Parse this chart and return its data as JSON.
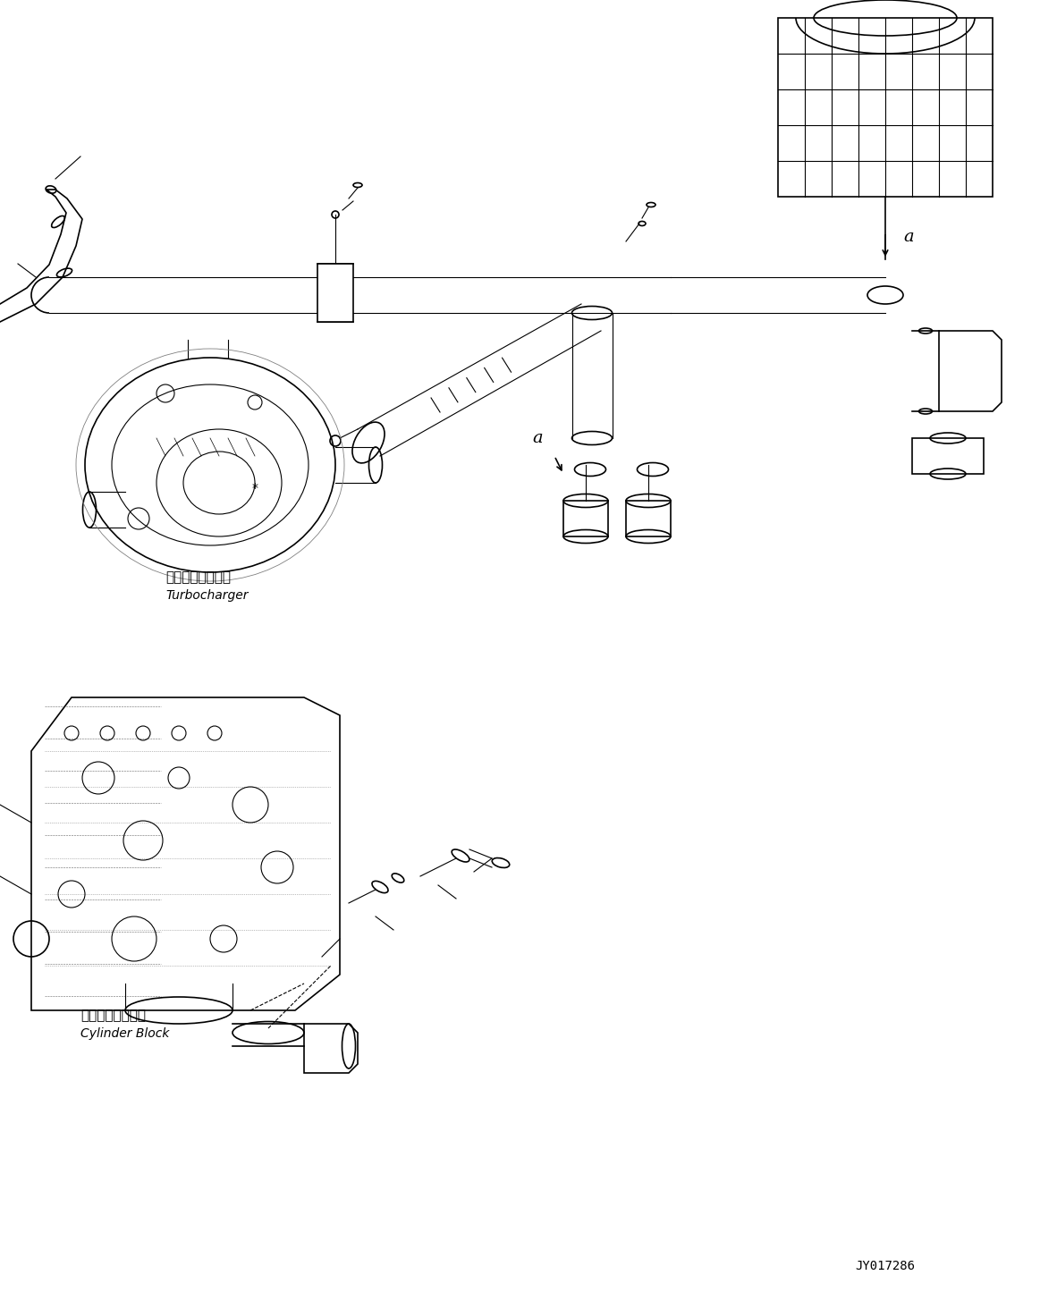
{
  "title": "",
  "background_color": "#ffffff",
  "line_color": "#000000",
  "text_color": "#000000",
  "watermark": "JY017286",
  "label_turbocharger_jp": "ターボチャージャ",
  "label_turbocharger_en": "Turbocharger",
  "label_cylinder_jp": "シリンダブロック",
  "label_cylinder_en": "Cylinder Block",
  "label_a1": "a",
  "label_a2": "a",
  "fig_width": 11.63,
  "fig_height": 14.45,
  "dpi": 100
}
